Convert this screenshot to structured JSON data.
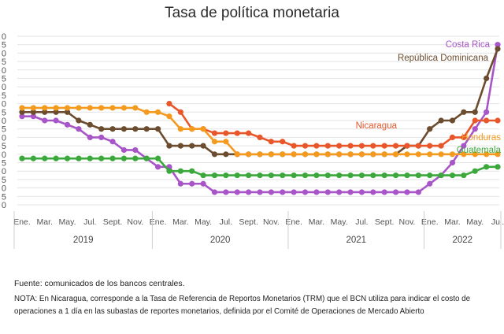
{
  "title": "Tasa de política monetaria",
  "source": "Fuente: comunicados de los bancos centrales.",
  "note": "NOTA: En Nicaragua, corresponde a la Tasa de Referencia de Reportos Monetarios (TRM) que el BCN utiliza para indicar el costo de operaciones a 1 día en las subastas de reportes monetarios, definida por el Comité de Operaciones de Mercado Abierto",
  "chart_data": {
    "type": "line",
    "y_tick_labels": [
      "0",
      "5",
      "0",
      "5",
      "0",
      "5",
      "0",
      "5",
      "0",
      "5",
      "0",
      "5",
      "0",
      "5",
      "0",
      "5",
      "0",
      "5",
      "0",
      "5",
      "0"
    ],
    "ylim": [
      0,
      10
    ],
    "grid": true,
    "x_tick_labels": [
      "Ene.",
      "Mar.",
      "May.",
      "Jul.",
      "Sept.",
      "Nov.",
      "Ene.",
      "Mar.",
      "May.",
      "Jul.",
      "Sept.",
      "Nov.",
      "Ene.",
      "Mar.",
      "May.",
      "Jul.",
      "Sept.",
      "Nov.",
      "Ene.",
      "Mar.",
      "May.",
      "Jul."
    ],
    "year_labels": [
      "2019",
      "2020",
      "2021",
      "2022"
    ],
    "months_start": "2019-01",
    "series": [
      {
        "name": "Costa Rica",
        "color": "#a855c8",
        "values": [
          5.25,
          5.25,
          5.0,
          5.0,
          4.75,
          4.5,
          4.0,
          4.0,
          3.75,
          3.25,
          3.25,
          2.75,
          2.25,
          2.25,
          1.25,
          1.25,
          1.25,
          0.75,
          0.75,
          0.75,
          0.75,
          0.75,
          0.75,
          0.75,
          0.75,
          0.75,
          0.75,
          0.75,
          0.75,
          0.75,
          0.75,
          0.75,
          0.75,
          0.75,
          0.75,
          0.75,
          1.25,
          1.75,
          2.5,
          3.5,
          4.5,
          5.5,
          9.5
        ]
      },
      {
        "name": "República Dominicana",
        "color": "#6b4c2e",
        "values": [
          5.5,
          5.5,
          5.5,
          5.5,
          5.5,
          5.0,
          4.75,
          4.5,
          4.5,
          4.5,
          4.5,
          4.5,
          4.5,
          3.5,
          3.5,
          3.5,
          3.5,
          3.0,
          3.0,
          3.0,
          3.0,
          3.0,
          3.0,
          3.0,
          3.0,
          3.0,
          3.0,
          3.0,
          3.0,
          3.0,
          3.0,
          3.0,
          3.0,
          3.0,
          3.5,
          3.5,
          4.5,
          5.0,
          5.0,
          5.5,
          5.5,
          7.5,
          9.25
        ]
      },
      {
        "name": "Nicaragua",
        "color": "#e8562a",
        "values": [
          null,
          null,
          null,
          null,
          null,
          null,
          null,
          null,
          null,
          null,
          null,
          null,
          null,
          6.0,
          5.5,
          4.5,
          4.5,
          4.25,
          4.25,
          4.25,
          4.25,
          4.0,
          3.75,
          3.75,
          3.5,
          3.5,
          3.5,
          3.5,
          3.5,
          3.5,
          3.5,
          3.5,
          3.5,
          3.5,
          3.5,
          3.5,
          3.5,
          3.5,
          4.0,
          4.0,
          5.0,
          5.0,
          5.0
        ]
      },
      {
        "name": "Honduras",
        "color": "#f39a1f",
        "values": [
          5.75,
          5.75,
          5.75,
          5.75,
          5.75,
          5.75,
          5.75,
          5.75,
          5.75,
          5.75,
          5.75,
          5.5,
          5.5,
          5.25,
          4.5,
          4.5,
          4.5,
          3.75,
          3.75,
          3.0,
          3.0,
          3.0,
          3.0,
          3.0,
          3.0,
          3.0,
          3.0,
          3.0,
          3.0,
          3.0,
          3.0,
          3.0,
          3.0,
          3.0,
          3.0,
          3.0,
          3.0,
          3.0,
          3.0,
          3.0,
          3.0,
          3.0,
          3.0
        ]
      },
      {
        "name": "Guatemala",
        "color": "#3aa83a",
        "values": [
          2.75,
          2.75,
          2.75,
          2.75,
          2.75,
          2.75,
          2.75,
          2.75,
          2.75,
          2.75,
          2.75,
          2.75,
          2.75,
          2.0,
          2.0,
          2.0,
          1.75,
          1.75,
          1.75,
          1.75,
          1.75,
          1.75,
          1.75,
          1.75,
          1.75,
          1.75,
          1.75,
          1.75,
          1.75,
          1.75,
          1.75,
          1.75,
          1.75,
          1.75,
          1.75,
          1.75,
          1.75,
          1.75,
          1.75,
          1.75,
          2.0,
          2.25,
          2.25
        ]
      }
    ]
  }
}
